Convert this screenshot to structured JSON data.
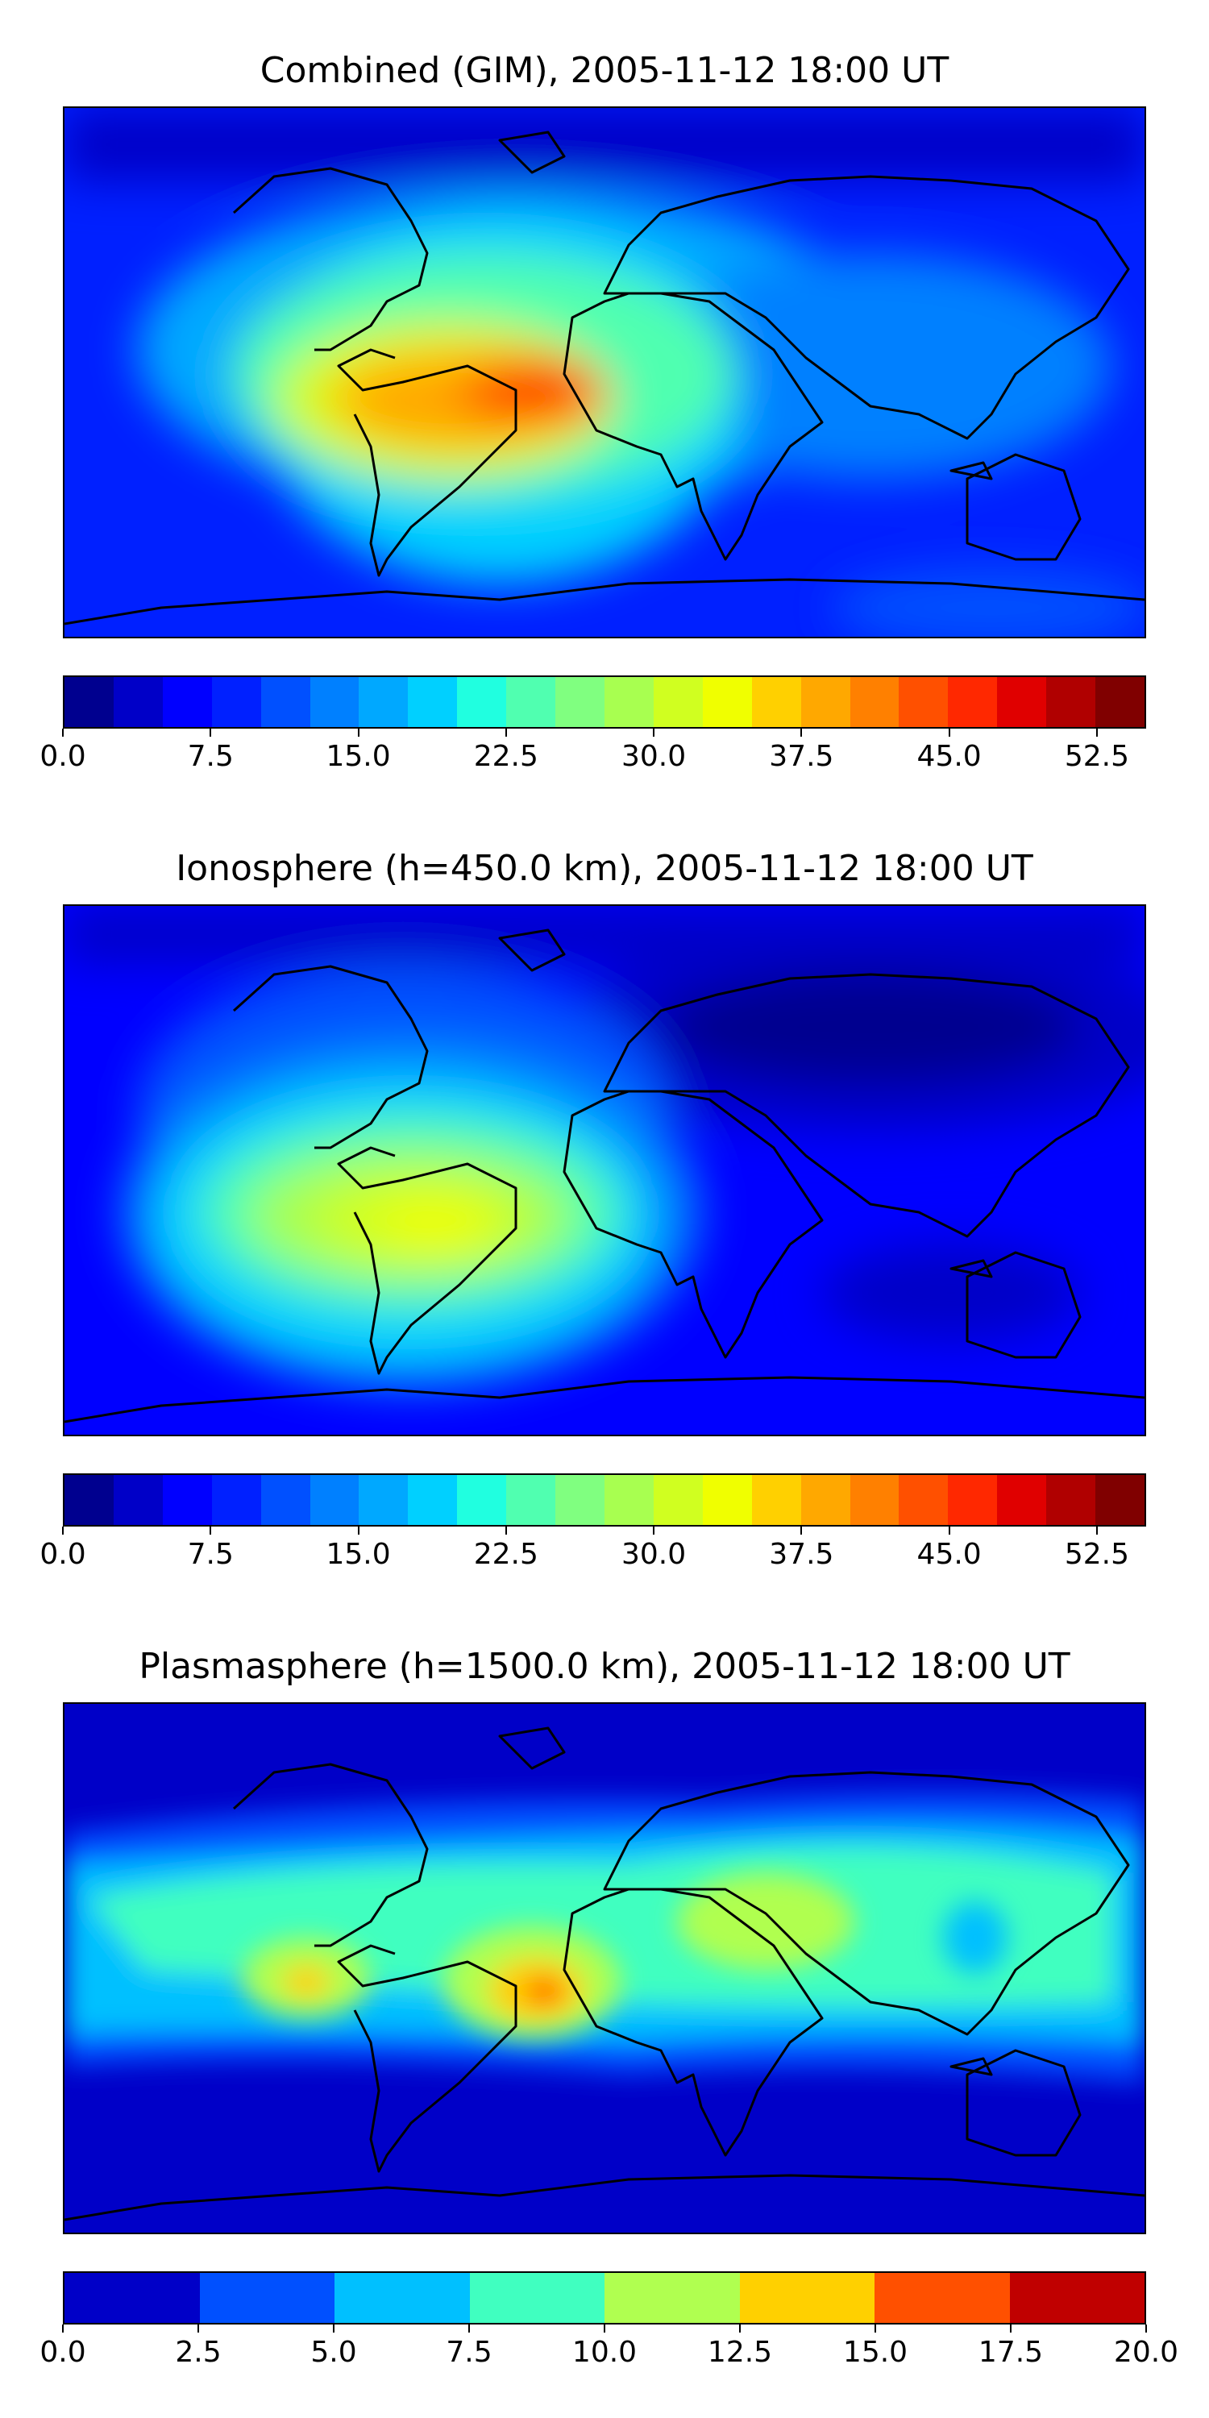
{
  "chart_data": [
    {
      "type": "heatmap",
      "subtype": "filled-contour-world-map",
      "title": "Combined (GIM), 2005-11-12 18:00 UT",
      "colormap": "jet",
      "colorbar": {
        "levels": [
          0.0,
          2.5,
          5.0,
          7.5,
          10.0,
          12.5,
          15.0,
          17.5,
          20.0,
          22.5,
          25.0,
          27.5,
          30.0,
          32.5,
          35.0,
          37.5,
          40.0,
          42.5,
          45.0,
          47.5,
          50.0,
          52.5,
          55.0
        ],
        "tick_labels": [
          "0.0",
          "7.5",
          "15.0",
          "22.5",
          "30.0",
          "37.5",
          "45.0",
          "52.5"
        ],
        "tick_values": [
          0.0,
          7.5,
          15.0,
          22.5,
          30.0,
          37.5,
          45.0,
          52.5
        ],
        "range": [
          0,
          55
        ]
      },
      "features": [
        {
          "region": "equatorial Atlantic / northern South America",
          "approx_lon": -35,
          "approx_lat": -5,
          "approx_value": 47
        },
        {
          "region": "tropical South America",
          "approx_lon": -55,
          "approx_lat": -8,
          "approx_value": 42
        },
        {
          "region": "northern polar",
          "approx_value": 7
        },
        {
          "region": "Asia / Pacific",
          "approx_value": 10
        }
      ]
    },
    {
      "type": "heatmap",
      "subtype": "filled-contour-world-map",
      "title": "Ionosphere  (h=450.0 km), 2005-11-12 18:00 UT",
      "colormap": "jet",
      "colorbar": {
        "levels": [
          0.0,
          2.5,
          5.0,
          7.5,
          10.0,
          12.5,
          15.0,
          17.5,
          20.0,
          22.5,
          25.0,
          27.5,
          30.0,
          32.5,
          35.0,
          37.5,
          40.0,
          42.5,
          45.0,
          47.5,
          50.0,
          52.5,
          55.0
        ],
        "tick_labels": [
          "0.0",
          "7.5",
          "15.0",
          "22.5",
          "30.0",
          "37.5",
          "45.0",
          "52.5"
        ],
        "tick_values": [
          0.0,
          7.5,
          15.0,
          22.5,
          30.0,
          37.5,
          45.0,
          52.5
        ],
        "range": [
          0,
          55
        ]
      },
      "features": [
        {
          "region": "tropical South America",
          "approx_lon": -55,
          "approx_lat": -10,
          "approx_value": 35
        },
        {
          "region": "tropical Atlantic",
          "approx_value": 30
        },
        {
          "region": "Eurasia",
          "approx_value": 3
        }
      ]
    },
    {
      "type": "heatmap",
      "subtype": "filled-contour-world-map",
      "title": "Plasmasphere (h=1500.0 km), 2005-11-12 18:00 UT",
      "colormap": "jet",
      "colorbar": {
        "levels": [
          0.0,
          2.5,
          5.0,
          7.5,
          10.0,
          12.5,
          15.0,
          17.5,
          20.0
        ],
        "tick_labels": [
          "0.0",
          "2.5",
          "5.0",
          "7.5",
          "10.0",
          "12.5",
          "15.0",
          "17.5",
          "20.0"
        ],
        "tick_values": [
          0.0,
          2.5,
          5.0,
          7.5,
          10.0,
          12.5,
          15.0,
          17.5,
          20.0
        ],
        "range": [
          0,
          20
        ]
      },
      "features": [
        {
          "region": "equatorial Atlantic off West Africa",
          "approx_lon": -5,
          "approx_lat": 0,
          "approx_value": 16
        },
        {
          "region": "eastern Pacific",
          "approx_lon": -100,
          "approx_lat": 0,
          "approx_value": 15
        },
        {
          "region": "equatorial belt",
          "approx_value": 10
        },
        {
          "region": "high latitudes",
          "approx_value": 1
        }
      ]
    }
  ],
  "colors": {
    "jet_22": [
      "#00008f",
      "#0000c8",
      "#0000ff",
      "#0020ff",
      "#0050ff",
      "#0080ff",
      "#00a8ff",
      "#00d0ff",
      "#20ffe0",
      "#50ffb0",
      "#80ff80",
      "#a8ff50",
      "#d0ff20",
      "#f0ff00",
      "#ffd000",
      "#ffa800",
      "#ff8000",
      "#ff5000",
      "#ff2800",
      "#e00000",
      "#b00000",
      "#800000"
    ],
    "jet_8": [
      "#0000c8",
      "#0050ff",
      "#00c0ff",
      "#40ffc0",
      "#b0ff50",
      "#ffd000",
      "#ff5000",
      "#c00000"
    ]
  }
}
